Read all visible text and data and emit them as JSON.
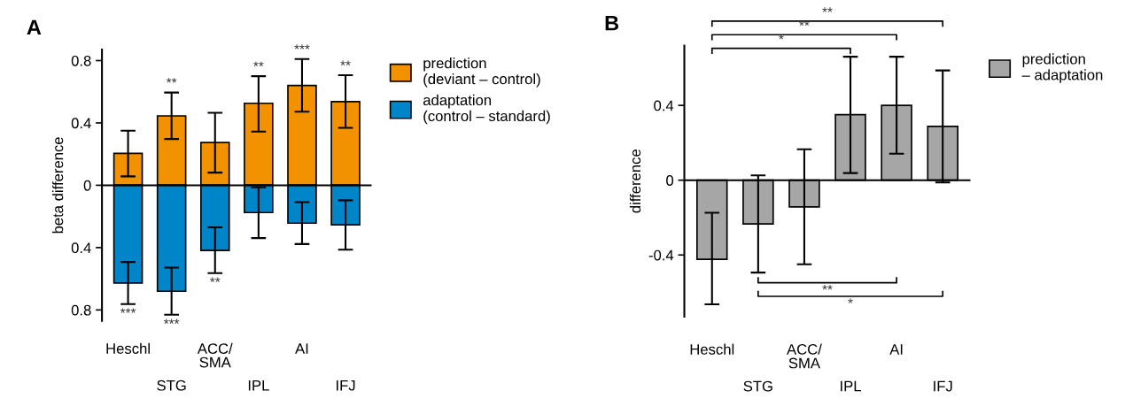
{
  "chart_data": [
    {
      "type": "bar",
      "title": "A",
      "ylabel": "beta difference",
      "stacked": true,
      "legend": "right",
      "grid": false,
      "categories": [
        "Heschl",
        "STG",
        "ACC/\nSMA",
        "IPL",
        "AI",
        "IFJ"
      ],
      "series": [
        {
          "name": "prediction\n(deviant – control)",
          "color": "#f39200",
          "values": [
            0.205,
            0.445,
            0.274,
            0.526,
            0.64,
            0.537
          ],
          "errors": [
            [
              0.057,
              0.35
            ],
            [
              0.297,
              0.595
            ],
            [
              0.081,
              0.465
            ],
            [
              0.344,
              0.7
            ],
            [
              0.472,
              0.81
            ],
            [
              0.369,
              0.706
            ]
          ]
        },
        {
          "name": "adaptation\n(control – standard)",
          "color": "#0086c8",
          "values": [
            -0.627,
            -0.68,
            -0.418,
            -0.175,
            -0.243,
            -0.254
          ],
          "errors": [
            [
              -0.762,
              -0.492
            ],
            [
              -0.831,
              -0.528
            ],
            [
              -0.564,
              -0.27
            ],
            [
              -0.339,
              -0.013
            ],
            [
              -0.377,
              -0.108
            ],
            [
              -0.413,
              -0.096
            ]
          ]
        }
      ],
      "ylim": [
        -0.87,
        0.87
      ],
      "yticks": [
        {
          "value": -0.8,
          "label": "0.8"
        },
        {
          "value": -0.4,
          "label": "0.4"
        },
        0,
        0.4,
        0.8
      ],
      "ref_lines": [
        {
          "axis": "y",
          "value": 0,
          "color": "#000000"
        }
      ],
      "annotations": [
        {
          "text": "**",
          "x": "STG",
          "y": 0.595
        },
        {
          "text": "**",
          "x": "IPL",
          "y": 0.7
        },
        {
          "text": "***",
          "x": "AI",
          "y": 0.81
        },
        {
          "text": "**",
          "x": "IFJ",
          "y": 0.706
        },
        {
          "text": "***",
          "x": "Heschl",
          "y": -0.762
        },
        {
          "text": "***",
          "x": "STG",
          "y": -0.831
        },
        {
          "text": "**",
          "x": "ACC/\nSMA",
          "y": -0.564
        }
      ]
    },
    {
      "type": "bar",
      "title": "B",
      "ylabel": "difference",
      "legend": "right",
      "grid": false,
      "categories": [
        "Heschl",
        "STG",
        "ACC/\nSMA",
        "IPL",
        "AI",
        "IFJ"
      ],
      "series": [
        {
          "name": "prediction\n– adaptation",
          "color": "#a6a6a6",
          "values": [
            -0.423,
            -0.234,
            -0.143,
            0.35,
            0.4,
            0.288
          ],
          "errors": [
            [
              -0.664,
              -0.174
            ],
            [
              -0.494,
              0.026
            ],
            [
              -0.45,
              0.165
            ],
            [
              0.038,
              0.66
            ],
            [
              0.142,
              0.66
            ],
            [
              -0.012,
              0.587
            ]
          ]
        }
      ],
      "ylim": [
        -0.73,
        0.72
      ],
      "yticks": [
        -0.4,
        0,
        0.4
      ],
      "ref_lines": [
        {
          "axis": "y",
          "value": 0,
          "color": "#000000"
        }
      ],
      "annotations": [
        "*",
        "**",
        "**",
        "**",
        "*"
      ]
    }
  ]
}
